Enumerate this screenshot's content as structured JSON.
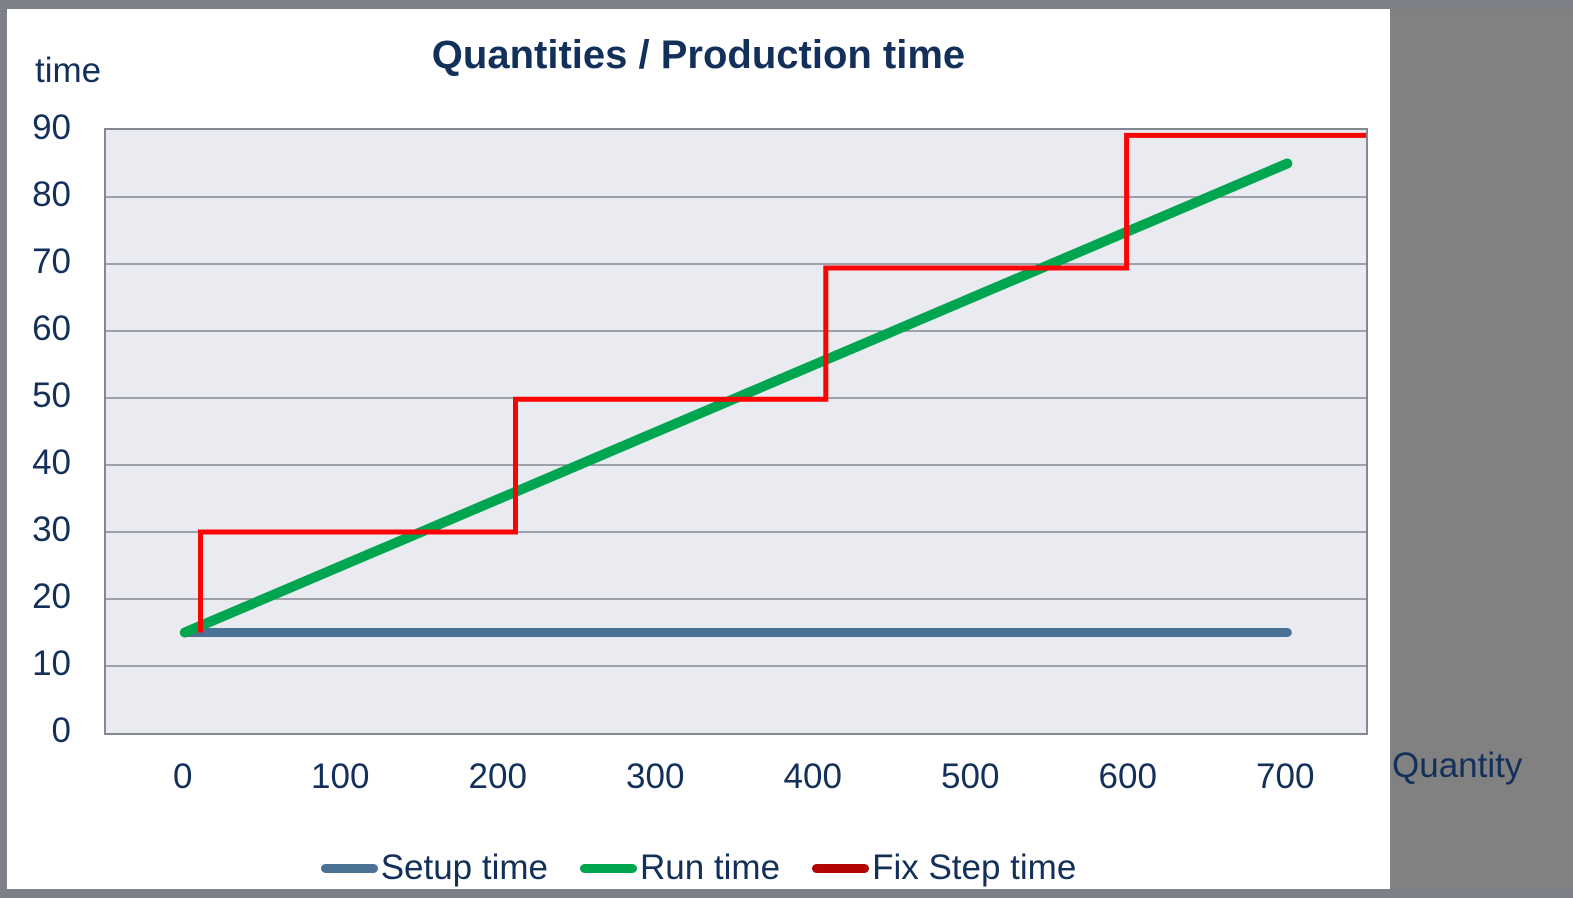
{
  "chart_data": {
    "type": "line",
    "title": "Quantities / Production time",
    "ylabel": "time",
    "xlabel": "Quantity",
    "yticks": [
      0,
      10,
      20,
      30,
      40,
      50,
      60,
      70,
      80,
      90
    ],
    "xticks": [
      0,
      100,
      200,
      300,
      400,
      500,
      600,
      700
    ],
    "ylim": [
      0,
      90
    ],
    "xlim": [
      -50,
      750
    ],
    "grid": "horizontal",
    "legend_position": "bottom",
    "colors": {
      "text": "#13305a",
      "plot_background": "#e9ebf1",
      "gridline": "#848890",
      "document_gray": "#818181",
      "frame_gray": "#7d8089"
    },
    "series": [
      {
        "name": "Setup time",
        "color": "#4a7294",
        "legend_color": "#4a7294",
        "width": 9,
        "cap": "round",
        "points": [
          [
            0,
            15
          ],
          [
            700,
            15
          ]
        ]
      },
      {
        "name": "Run time",
        "color": "#00a64f",
        "legend_color": "#00a64f",
        "width": 10,
        "cap": "round",
        "points": [
          [
            0,
            15
          ],
          [
            700,
            85
          ]
        ]
      },
      {
        "name": "Fix Step time",
        "color": "#fb0404",
        "legend_color": "#b30505",
        "width": 5,
        "cap": "butt",
        "points": [
          [
            10,
            15
          ],
          [
            10,
            30
          ],
          [
            210,
            30
          ],
          [
            210,
            49.8
          ],
          [
            407,
            49.8
          ],
          [
            407,
            69.4
          ],
          [
            598,
            69.4
          ],
          [
            598,
            89.2
          ],
          [
            750,
            89.2
          ]
        ]
      }
    ]
  }
}
